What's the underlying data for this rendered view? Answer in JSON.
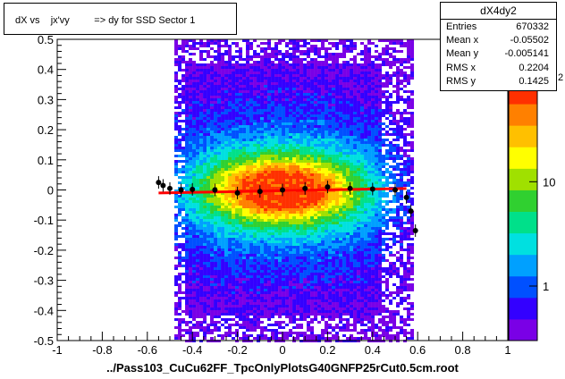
{
  "title_box": {
    "text": "dX vs    jx'vy         => dy for SSD Sector 1"
  },
  "stats_box": {
    "name": "dX4dy2",
    "rows": [
      {
        "label": "Entries",
        "value": "670332"
      },
      {
        "label": "Mean x",
        "value": "-0.05502"
      },
      {
        "label": "Mean y",
        "value": "-0.005141"
      },
      {
        "label": "RMS x",
        "value": "0.2204"
      },
      {
        "label": "RMS y",
        "value": "0.1425"
      }
    ]
  },
  "x_axis_title": "../Pass103_CuCu62FF_TpcOnlyPlotsG40GNFP25rCut0.5cm.root",
  "colors": {
    "frame": "#000000",
    "profile_points": "#000000",
    "fit_line": "#ff0000",
    "palette": [
      "#7a00e6",
      "#3300ff",
      "#0050ff",
      "#00a0ff",
      "#00e0e0",
      "#00e08a",
      "#30d030",
      "#a0e000",
      "#ffff00",
      "#ffc000",
      "#ff8000",
      "#ff3000"
    ]
  },
  "chart_data": {
    "type": "heatmap",
    "xlim": [
      -1,
      1
    ],
    "ylim": [
      -0.5,
      0.5
    ],
    "x_ticks": [
      "-1",
      "-0.8",
      "-0.6",
      "-0.4",
      "-0.2",
      "0",
      "0.2",
      "0.4",
      "0.6",
      "0.8",
      "1"
    ],
    "x_tick_values": [
      -1,
      -0.8,
      -0.6,
      -0.4,
      -0.2,
      0,
      0.2,
      0.4,
      0.6,
      0.8,
      1
    ],
    "y_ticks": [
      "0.5",
      "0.4",
      "0.3",
      "0.2",
      "0.1",
      "0",
      "-0.1",
      "-0.2",
      "-0.3",
      "-0.4",
      "-0.5"
    ],
    "y_tick_values": [
      0.5,
      0.4,
      0.3,
      0.2,
      0.1,
      0,
      -0.1,
      -0.2,
      -0.3,
      -0.4,
      -0.5
    ],
    "data_x_range": [
      -0.55,
      0.6
    ],
    "z_scale": "log",
    "z_ticks": [
      {
        "label": "10",
        "value": 10
      },
      {
        "label": "1",
        "value": 1
      }
    ],
    "z_range": [
      0.3,
      90
    ],
    "z_top_label_fragment": "2",
    "profile_points": [
      {
        "x": -0.55,
        "y": 0.025
      },
      {
        "x": -0.53,
        "y": 0.015
      },
      {
        "x": -0.5,
        "y": 0.005
      },
      {
        "x": -0.45,
        "y": 0.0
      },
      {
        "x": -0.4,
        "y": 0.002
      },
      {
        "x": -0.3,
        "y": 0.0
      },
      {
        "x": -0.2,
        "y": -0.01
      },
      {
        "x": -0.1,
        "y": -0.005
      },
      {
        "x": 0.0,
        "y": 0.0
      },
      {
        "x": 0.1,
        "y": 0.005
      },
      {
        "x": 0.2,
        "y": 0.01
      },
      {
        "x": 0.3,
        "y": 0.005
      },
      {
        "x": 0.4,
        "y": 0.003
      },
      {
        "x": 0.5,
        "y": 0.0
      },
      {
        "x": 0.55,
        "y": -0.025
      },
      {
        "x": 0.57,
        "y": -0.07
      },
      {
        "x": 0.59,
        "y": -0.135
      }
    ],
    "fit_line": {
      "x": [
        -0.55,
        0.55
      ],
      "y": [
        -0.01,
        0.005
      ]
    }
  }
}
